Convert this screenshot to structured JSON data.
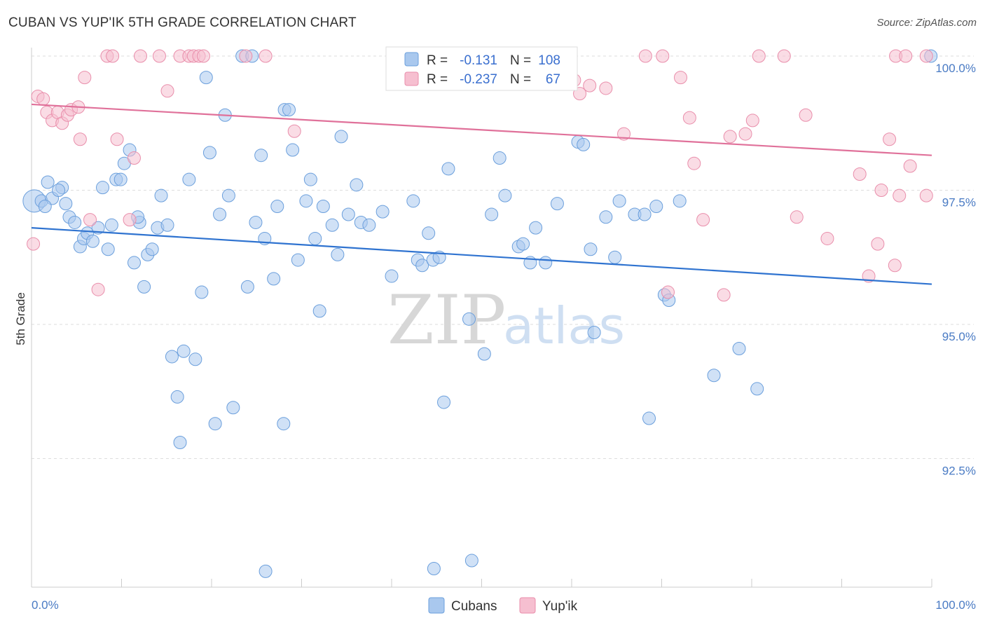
{
  "title": "CUBAN VS YUP'IK 5TH GRADE CORRELATION CHART",
  "source": "Source: ZipAtlas.com",
  "watermark": {
    "zip": "ZIP",
    "atlas": "atlas"
  },
  "legend": {
    "r_label": "R =",
    "n_label": "N =",
    "entries": [
      {
        "r": "-0.131",
        "n": "108"
      },
      {
        "r": "-0.237",
        "n": "67"
      }
    ]
  },
  "colors": {
    "cubans_fill": "#a9c8ee",
    "cubans_stroke": "#6b9fdc",
    "cubans_line": "#2f73d0",
    "yupik_fill": "#f6bfd0",
    "yupik_stroke": "#e98eab",
    "yupik_line": "#e0719a",
    "grid": "#dddddd",
    "axis_text": "#4a7bc4"
  },
  "chart_data": {
    "type": "scatter",
    "title": "CUBAN VS YUP'IK 5TH GRADE CORRELATION CHART",
    "xlabel": "",
    "ylabel": "5th Grade",
    "xlim": [
      0,
      100
    ],
    "ylim": [
      90.0,
      100.4
    ],
    "x_tick_labels": [
      "0.0%",
      "100.0%"
    ],
    "y_ticks": [
      {
        "value": 92.5,
        "label": "92.5%"
      },
      {
        "value": 95.0,
        "label": "95.0%"
      },
      {
        "value": 97.5,
        "label": "97.5%"
      },
      {
        "value": 100.0,
        "label": "100.0%"
      }
    ],
    "grid": true,
    "legend_position": "top-center",
    "series": [
      {
        "name": "Cubans",
        "trend": {
          "x": [
            0,
            100
          ],
          "y": [
            96.8,
            95.75
          ]
        },
        "points": [
          [
            0.3,
            97.3
          ],
          [
            1.1,
            97.3
          ],
          [
            1.8,
            97.65
          ],
          [
            2.3,
            97.35
          ],
          [
            3.4,
            97.55
          ],
          [
            3.8,
            97.25
          ],
          [
            4.2,
            97.0
          ],
          [
            4.8,
            96.9
          ],
          [
            5.4,
            96.45
          ],
          [
            5.8,
            96.6
          ],
          [
            6.2,
            96.7
          ],
          [
            6.8,
            96.55
          ],
          [
            7.4,
            96.8
          ],
          [
            7.9,
            97.55
          ],
          [
            8.5,
            96.4
          ],
          [
            8.9,
            96.85
          ],
          [
            9.4,
            97.7
          ],
          [
            9.9,
            97.7
          ],
          [
            10.3,
            98.0
          ],
          [
            10.9,
            98.25
          ],
          [
            11.4,
            96.15
          ],
          [
            12.0,
            96.9
          ],
          [
            12.5,
            95.7
          ],
          [
            12.9,
            96.3
          ],
          [
            13.4,
            96.4
          ],
          [
            14.0,
            96.8
          ],
          [
            14.4,
            97.4
          ],
          [
            15.1,
            96.85
          ],
          [
            15.6,
            94.4
          ],
          [
            16.2,
            93.65
          ],
          [
            16.5,
            92.8
          ],
          [
            16.9,
            94.5
          ],
          [
            17.5,
            97.7
          ],
          [
            18.2,
            94.35
          ],
          [
            18.9,
            95.6
          ],
          [
            19.4,
            99.6
          ],
          [
            19.8,
            98.2
          ],
          [
            20.4,
            93.15
          ],
          [
            20.9,
            97.05
          ],
          [
            21.5,
            98.9
          ],
          [
            21.9,
            97.4
          ],
          [
            22.4,
            93.45
          ],
          [
            23.4,
            100.0
          ],
          [
            24.0,
            95.7
          ],
          [
            24.5,
            100.0
          ],
          [
            24.9,
            96.9
          ],
          [
            25.5,
            98.15
          ],
          [
            25.9,
            96.6
          ],
          [
            26.9,
            95.85
          ],
          [
            27.3,
            97.2
          ],
          [
            28.0,
            93.15
          ],
          [
            28.1,
            99.0
          ],
          [
            28.6,
            99.0
          ],
          [
            29.0,
            98.25
          ],
          [
            29.6,
            96.2
          ],
          [
            30.5,
            97.3
          ],
          [
            31.5,
            96.6
          ],
          [
            32.0,
            95.25
          ],
          [
            32.4,
            97.2
          ],
          [
            33.4,
            96.85
          ],
          [
            34.0,
            96.3
          ],
          [
            34.4,
            98.5
          ],
          [
            35.2,
            97.05
          ],
          [
            36.1,
            97.6
          ],
          [
            36.6,
            96.9
          ],
          [
            37.5,
            96.85
          ],
          [
            40.0,
            95.9
          ],
          [
            42.4,
            97.3
          ],
          [
            42.9,
            96.2
          ],
          [
            43.4,
            96.1
          ],
          [
            44.1,
            96.7
          ],
          [
            44.6,
            96.2
          ],
          [
            45.3,
            96.25
          ],
          [
            45.8,
            93.55
          ],
          [
            46.3,
            97.9
          ],
          [
            48.6,
            95.1
          ],
          [
            48.9,
            90.6
          ],
          [
            50.3,
            94.45
          ],
          [
            51.1,
            97.05
          ],
          [
            52.0,
            98.1
          ],
          [
            52.6,
            97.4
          ],
          [
            54.1,
            96.45
          ],
          [
            54.6,
            96.5
          ],
          [
            55.4,
            96.15
          ],
          [
            57.1,
            96.15
          ],
          [
            58.4,
            97.25
          ],
          [
            60.7,
            98.4
          ],
          [
            61.3,
            98.35
          ],
          [
            62.1,
            96.4
          ],
          [
            62.5,
            94.85
          ],
          [
            63.8,
            97.0
          ],
          [
            64.8,
            96.25
          ],
          [
            65.3,
            97.3
          ],
          [
            67.0,
            97.05
          ],
          [
            68.1,
            97.05
          ],
          [
            68.6,
            93.25
          ],
          [
            69.4,
            97.2
          ],
          [
            70.3,
            95.55
          ],
          [
            70.8,
            95.45
          ],
          [
            75.8,
            94.05
          ],
          [
            78.6,
            94.55
          ],
          [
            80.6,
            93.8
          ],
          [
            99.9,
            100.0
          ],
          [
            26.0,
            90.4
          ],
          [
            44.7,
            90.45
          ],
          [
            1.5,
            97.2
          ],
          [
            3.0,
            97.5
          ],
          [
            31.0,
            97.7
          ],
          [
            39.0,
            97.1
          ],
          [
            56.0,
            96.8
          ],
          [
            72.0,
            97.3
          ],
          [
            11.8,
            97.0
          ]
        ]
      },
      {
        "name": "Yup'ik",
        "trend": {
          "x": [
            0,
            100
          ],
          "y": [
            99.1,
            98.15
          ]
        },
        "points": [
          [
            0.2,
            96.5
          ],
          [
            0.7,
            99.25
          ],
          [
            1.3,
            99.2
          ],
          [
            1.7,
            98.95
          ],
          [
            2.3,
            98.8
          ],
          [
            2.9,
            98.95
          ],
          [
            3.4,
            98.75
          ],
          [
            4.0,
            98.9
          ],
          [
            4.4,
            99.0
          ],
          [
            5.2,
            99.05
          ],
          [
            5.4,
            98.45
          ],
          [
            5.9,
            99.6
          ],
          [
            6.5,
            96.95
          ],
          [
            7.4,
            95.65
          ],
          [
            8.4,
            100.0
          ],
          [
            9.0,
            100.0
          ],
          [
            9.5,
            98.45
          ],
          [
            10.9,
            96.95
          ],
          [
            11.4,
            98.1
          ],
          [
            12.1,
            100.0
          ],
          [
            14.2,
            100.0
          ],
          [
            15.1,
            99.35
          ],
          [
            16.5,
            100.0
          ],
          [
            17.5,
            100.0
          ],
          [
            18.0,
            100.0
          ],
          [
            18.6,
            100.0
          ],
          [
            19.1,
            100.0
          ],
          [
            23.8,
            100.0
          ],
          [
            26.0,
            100.0
          ],
          [
            29.2,
            98.6
          ],
          [
            42.9,
            100.0
          ],
          [
            46.1,
            100.0
          ],
          [
            51.4,
            100.0
          ],
          [
            59.4,
            100.0
          ],
          [
            60.3,
            99.55
          ],
          [
            60.9,
            99.3
          ],
          [
            62.0,
            99.45
          ],
          [
            63.8,
            99.4
          ],
          [
            65.8,
            98.55
          ],
          [
            68.2,
            100.0
          ],
          [
            70.1,
            100.0
          ],
          [
            70.7,
            95.6
          ],
          [
            72.1,
            99.6
          ],
          [
            73.1,
            98.85
          ],
          [
            73.6,
            98.0
          ],
          [
            74.6,
            96.95
          ],
          [
            76.9,
            95.55
          ],
          [
            77.6,
            98.5
          ],
          [
            79.3,
            98.55
          ],
          [
            80.1,
            98.8
          ],
          [
            80.8,
            100.0
          ],
          [
            83.6,
            100.0
          ],
          [
            86.0,
            98.9
          ],
          [
            85.0,
            97.0
          ],
          [
            88.4,
            96.6
          ],
          [
            92.0,
            97.8
          ],
          [
            93.0,
            95.9
          ],
          [
            94.0,
            96.5
          ],
          [
            94.4,
            97.5
          ],
          [
            95.3,
            98.45
          ],
          [
            95.9,
            96.1
          ],
          [
            96.4,
            97.4
          ],
          [
            97.6,
            97.95
          ],
          [
            96.0,
            100.0
          ],
          [
            97.1,
            100.0
          ],
          [
            99.4,
            97.4
          ],
          [
            99.4,
            100.0
          ]
        ]
      }
    ]
  }
}
